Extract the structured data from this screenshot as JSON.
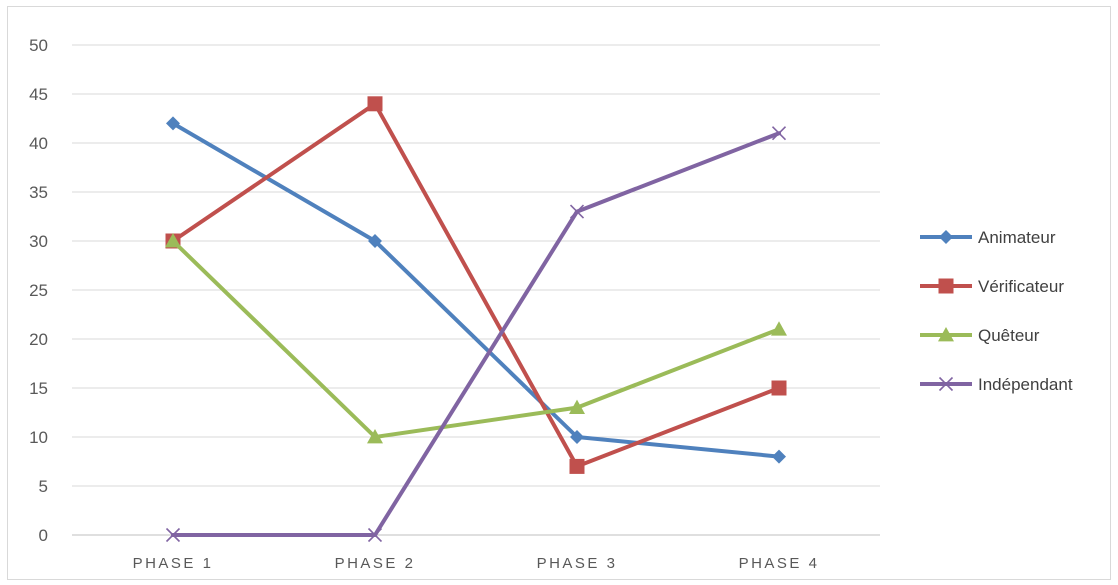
{
  "chart_data": {
    "type": "line",
    "categories": [
      "PHASE 1",
      "PHASE 2",
      "PHASE 3",
      "PHASE 4"
    ],
    "series": [
      {
        "name": "Animateur",
        "values": [
          42,
          30,
          10,
          8
        ],
        "color": "#4f81bd",
        "marker": "diamond"
      },
      {
        "name": "Vérificateur",
        "values": [
          30,
          44,
          7,
          15
        ],
        "color": "#c0504d",
        "marker": "square"
      },
      {
        "name": "Quêteur",
        "values": [
          30,
          10,
          13,
          21
        ],
        "color": "#9bbb59",
        "marker": "triangle"
      },
      {
        "name": "Indépendant",
        "values": [
          0,
          0,
          33,
          41
        ],
        "color": "#8064a2",
        "marker": "x"
      }
    ],
    "y_ticks": [
      "0",
      "5",
      "10",
      "15",
      "20",
      "25",
      "30",
      "35",
      "40",
      "45",
      "50"
    ],
    "ylim": [
      0,
      50
    ],
    "grid": true,
    "legend_position": "right"
  }
}
